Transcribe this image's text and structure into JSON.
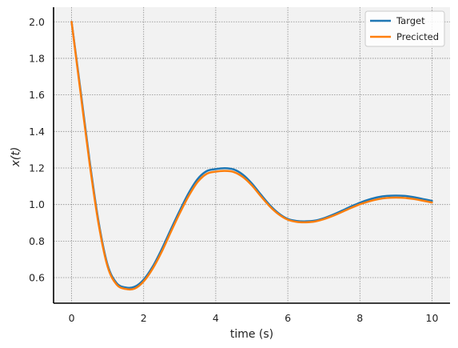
{
  "chart_data": {
    "type": "line",
    "xlabel": "time (s)",
    "ylabel": "x(t)",
    "xlim": [
      -0.5,
      10.5
    ],
    "ylim": [
      0.46,
      2.08
    ],
    "xticks": [
      0,
      2,
      4,
      6,
      8,
      10
    ],
    "yticks": [
      0.6,
      0.8,
      1.0,
      1.2,
      1.4,
      1.6,
      1.8,
      2.0
    ],
    "xtick_labels": [
      "0",
      "2",
      "4",
      "6",
      "8",
      "10"
    ],
    "ytick_labels": [
      "0.6",
      "0.8",
      "1.0",
      "1.2",
      "1.4",
      "1.6",
      "1.8",
      "2.0"
    ],
    "grid": true,
    "legend_position": "top-right",
    "background_color": "#f2f2f2",
    "series": [
      {
        "name": "Target",
        "color": "#1f77b4",
        "x": [
          0,
          0.25,
          0.5,
          0.75,
          1.0,
          1.25,
          1.5,
          1.75,
          2.0,
          2.25,
          2.5,
          2.75,
          3.0,
          3.25,
          3.5,
          3.75,
          4.0,
          4.25,
          4.5,
          4.75,
          5.0,
          5.25,
          5.5,
          5.75,
          6.0,
          6.25,
          6.5,
          6.75,
          7.0,
          7.25,
          7.5,
          7.75,
          8.0,
          8.25,
          8.5,
          8.75,
          9.0,
          9.25,
          9.5,
          9.75,
          10.0
        ],
        "y": [
          2.0,
          1.624,
          1.24,
          0.905,
          0.669,
          0.57,
          0.546,
          0.55,
          0.589,
          0.66,
          0.755,
          0.862,
          0.966,
          1.063,
          1.14,
          1.183,
          1.194,
          1.199,
          1.192,
          1.164,
          1.116,
          1.055,
          0.997,
          0.951,
          0.921,
          0.91,
          0.908,
          0.912,
          0.925,
          0.944,
          0.966,
          0.989,
          1.01,
          1.027,
          1.04,
          1.047,
          1.049,
          1.047,
          1.04,
          1.03,
          1.02
        ]
      },
      {
        "name": "Precicted",
        "color": "#ff7f0e",
        "x": [
          0,
          0.25,
          0.5,
          0.75,
          1.0,
          1.25,
          1.5,
          1.75,
          2.0,
          2.25,
          2.5,
          2.75,
          3.0,
          3.25,
          3.5,
          3.75,
          4.0,
          4.25,
          4.5,
          4.75,
          5.0,
          5.25,
          5.5,
          5.75,
          6.0,
          6.25,
          6.5,
          6.75,
          7.0,
          7.25,
          7.5,
          7.75,
          8.0,
          8.25,
          8.5,
          8.75,
          9.0,
          9.25,
          9.5,
          9.75,
          10.0
        ],
        "y": [
          2.0,
          1.61,
          1.225,
          0.893,
          0.66,
          0.562,
          0.538,
          0.54,
          0.579,
          0.649,
          0.741,
          0.848,
          0.952,
          1.047,
          1.124,
          1.168,
          1.18,
          1.184,
          1.178,
          1.151,
          1.105,
          1.046,
          0.99,
          0.946,
          0.917,
          0.905,
          0.903,
          0.907,
          0.92,
          0.938,
          0.959,
          0.981,
          1.001,
          1.017,
          1.029,
          1.036,
          1.038,
          1.036,
          1.03,
          1.021,
          1.011
        ]
      }
    ]
  }
}
